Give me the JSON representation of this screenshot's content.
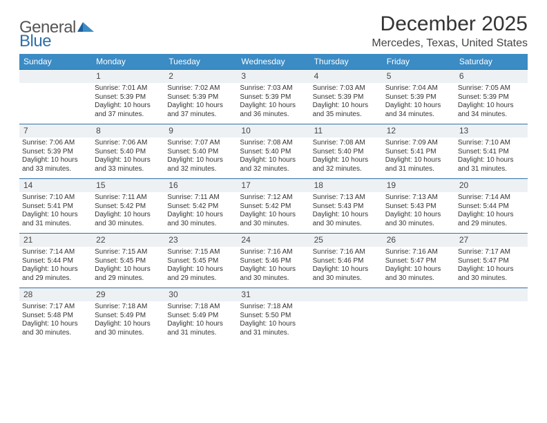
{
  "logo": {
    "word1": "General",
    "word2": "Blue",
    "tri_color": "#1c5f9f"
  },
  "title": "December 2025",
  "location": "Mercedes, Texas, United States",
  "colors": {
    "header_bg": "#3b8bc4",
    "rule": "#2f6fa7",
    "daynum_bg": "#eef1f3",
    "text": "#333333"
  },
  "weekdays": [
    "Sunday",
    "Monday",
    "Tuesday",
    "Wednesday",
    "Thursday",
    "Friday",
    "Saturday"
  ],
  "first_weekday_index": 1,
  "days": [
    {
      "n": 1,
      "sunrise": "7:01 AM",
      "sunset": "5:39 PM",
      "dl": "10 hours and 37 minutes."
    },
    {
      "n": 2,
      "sunrise": "7:02 AM",
      "sunset": "5:39 PM",
      "dl": "10 hours and 37 minutes."
    },
    {
      "n": 3,
      "sunrise": "7:03 AM",
      "sunset": "5:39 PM",
      "dl": "10 hours and 36 minutes."
    },
    {
      "n": 4,
      "sunrise": "7:03 AM",
      "sunset": "5:39 PM",
      "dl": "10 hours and 35 minutes."
    },
    {
      "n": 5,
      "sunrise": "7:04 AM",
      "sunset": "5:39 PM",
      "dl": "10 hours and 34 minutes."
    },
    {
      "n": 6,
      "sunrise": "7:05 AM",
      "sunset": "5:39 PM",
      "dl": "10 hours and 34 minutes."
    },
    {
      "n": 7,
      "sunrise": "7:06 AM",
      "sunset": "5:39 PM",
      "dl": "10 hours and 33 minutes."
    },
    {
      "n": 8,
      "sunrise": "7:06 AM",
      "sunset": "5:40 PM",
      "dl": "10 hours and 33 minutes."
    },
    {
      "n": 9,
      "sunrise": "7:07 AM",
      "sunset": "5:40 PM",
      "dl": "10 hours and 32 minutes."
    },
    {
      "n": 10,
      "sunrise": "7:08 AM",
      "sunset": "5:40 PM",
      "dl": "10 hours and 32 minutes."
    },
    {
      "n": 11,
      "sunrise": "7:08 AM",
      "sunset": "5:40 PM",
      "dl": "10 hours and 32 minutes."
    },
    {
      "n": 12,
      "sunrise": "7:09 AM",
      "sunset": "5:41 PM",
      "dl": "10 hours and 31 minutes."
    },
    {
      "n": 13,
      "sunrise": "7:10 AM",
      "sunset": "5:41 PM",
      "dl": "10 hours and 31 minutes."
    },
    {
      "n": 14,
      "sunrise": "7:10 AM",
      "sunset": "5:41 PM",
      "dl": "10 hours and 31 minutes."
    },
    {
      "n": 15,
      "sunrise": "7:11 AM",
      "sunset": "5:42 PM",
      "dl": "10 hours and 30 minutes."
    },
    {
      "n": 16,
      "sunrise": "7:11 AM",
      "sunset": "5:42 PM",
      "dl": "10 hours and 30 minutes."
    },
    {
      "n": 17,
      "sunrise": "7:12 AM",
      "sunset": "5:42 PM",
      "dl": "10 hours and 30 minutes."
    },
    {
      "n": 18,
      "sunrise": "7:13 AM",
      "sunset": "5:43 PM",
      "dl": "10 hours and 30 minutes."
    },
    {
      "n": 19,
      "sunrise": "7:13 AM",
      "sunset": "5:43 PM",
      "dl": "10 hours and 30 minutes."
    },
    {
      "n": 20,
      "sunrise": "7:14 AM",
      "sunset": "5:44 PM",
      "dl": "10 hours and 29 minutes."
    },
    {
      "n": 21,
      "sunrise": "7:14 AM",
      "sunset": "5:44 PM",
      "dl": "10 hours and 29 minutes."
    },
    {
      "n": 22,
      "sunrise": "7:15 AM",
      "sunset": "5:45 PM",
      "dl": "10 hours and 29 minutes."
    },
    {
      "n": 23,
      "sunrise": "7:15 AM",
      "sunset": "5:45 PM",
      "dl": "10 hours and 29 minutes."
    },
    {
      "n": 24,
      "sunrise": "7:16 AM",
      "sunset": "5:46 PM",
      "dl": "10 hours and 30 minutes."
    },
    {
      "n": 25,
      "sunrise": "7:16 AM",
      "sunset": "5:46 PM",
      "dl": "10 hours and 30 minutes."
    },
    {
      "n": 26,
      "sunrise": "7:16 AM",
      "sunset": "5:47 PM",
      "dl": "10 hours and 30 minutes."
    },
    {
      "n": 27,
      "sunrise": "7:17 AM",
      "sunset": "5:47 PM",
      "dl": "10 hours and 30 minutes."
    },
    {
      "n": 28,
      "sunrise": "7:17 AM",
      "sunset": "5:48 PM",
      "dl": "10 hours and 30 minutes."
    },
    {
      "n": 29,
      "sunrise": "7:18 AM",
      "sunset": "5:49 PM",
      "dl": "10 hours and 30 minutes."
    },
    {
      "n": 30,
      "sunrise": "7:18 AM",
      "sunset": "5:49 PM",
      "dl": "10 hours and 31 minutes."
    },
    {
      "n": 31,
      "sunrise": "7:18 AM",
      "sunset": "5:50 PM",
      "dl": "10 hours and 31 minutes."
    }
  ],
  "labels": {
    "sunrise": "Sunrise:",
    "sunset": "Sunset:",
    "daylight": "Daylight:"
  }
}
